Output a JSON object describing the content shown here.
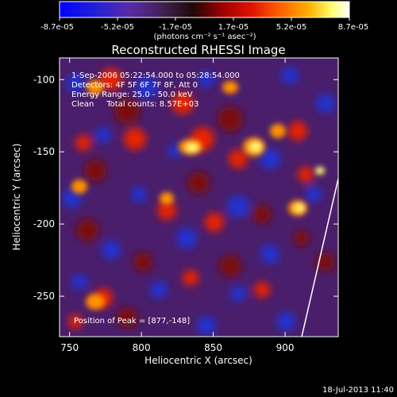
{
  "colorbar": {
    "min_label": "-8.7e-05",
    "tick_labels": [
      "-8.7e-05",
      "-5.2e-05",
      "-1.7e-05",
      "1.7e-05",
      "5.2e-05",
      "8.7e-05"
    ],
    "units": "(photons cm⁻² s⁻¹ asec⁻²)",
    "colors": [
      "#0000ff",
      "#1a1ad0",
      "#5028a0",
      "#3c1a48",
      "#7a1010",
      "#c80000",
      "#ff4000",
      "#ff9000",
      "#ffd000",
      "#ffff80",
      "#ffffff"
    ]
  },
  "plot": {
    "title": "Reconstructed RHESSI Image",
    "xlabel": "Heliocentric X (arcsec)",
    "ylabel": "Heliocentric Y (arcsec)",
    "xticks": [
      "750",
      "800",
      "850",
      "900"
    ],
    "yticks": [
      "-100",
      "-150",
      "-200",
      "-250"
    ],
    "xlim": [
      743,
      937
    ],
    "ylim": [
      -278,
      -85
    ]
  },
  "annotations": {
    "time_range": "1-Sep-2006 05:22:54.000 to 05:28:54.000",
    "detectors": "Detectors: 4F 5F 6F 7F 8F, Att 0",
    "energy_range": "Energy Range: 25.0 - 50.0 keV",
    "method_counts": "Clean     Total counts: 8.57E+03",
    "peak_position": "Position of Peak = [877,-148]"
  },
  "footer": {
    "timestamp": "18-Jul-2013 11:40"
  }
}
